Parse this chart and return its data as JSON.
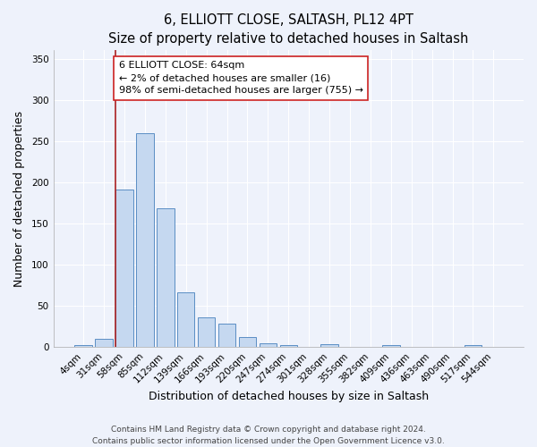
{
  "title": "6, ELLIOTT CLOSE, SALTASH, PL12 4PT",
  "subtitle": "Size of property relative to detached houses in Saltash",
  "xlabel": "Distribution of detached houses by size in Saltash",
  "ylabel": "Number of detached properties",
  "categories": [
    "4sqm",
    "31sqm",
    "58sqm",
    "85sqm",
    "112sqm",
    "139sqm",
    "166sqm",
    "193sqm",
    "220sqm",
    "247sqm",
    "274sqm",
    "301sqm",
    "328sqm",
    "355sqm",
    "382sqm",
    "409sqm",
    "436sqm",
    "463sqm",
    "490sqm",
    "517sqm",
    "544sqm"
  ],
  "values": [
    2,
    10,
    191,
    259,
    168,
    66,
    36,
    29,
    12,
    5,
    3,
    0,
    4,
    0,
    0,
    3,
    0,
    0,
    0,
    3,
    0
  ],
  "bar_color": "#c5d8f0",
  "bar_edge_color": "#5b8ec4",
  "vline_x_index": 2,
  "vline_color": "#aa2222",
  "annotation_line1": "6 ELLIOTT CLOSE: 64sqm",
  "annotation_line2": "← 2% of detached houses are smaller (16)",
  "annotation_line3": "98% of semi-detached houses are larger (755) →",
  "annotation_box_color": "white",
  "annotation_box_edge_color": "#cc2222",
  "ylim": [
    0,
    360
  ],
  "yticks": [
    0,
    50,
    100,
    150,
    200,
    250,
    300,
    350
  ],
  "footer_line1": "Contains HM Land Registry data © Crown copyright and database right 2024.",
  "footer_line2": "Contains public sector information licensed under the Open Government Licence v3.0.",
  "bg_color": "#eef2fb",
  "grid_color": "#ffffff",
  "title_fontsize": 10.5,
  "label_fontsize": 9,
  "tick_fontsize": 7.5,
  "footer_fontsize": 6.5,
  "annot_fontsize": 8
}
